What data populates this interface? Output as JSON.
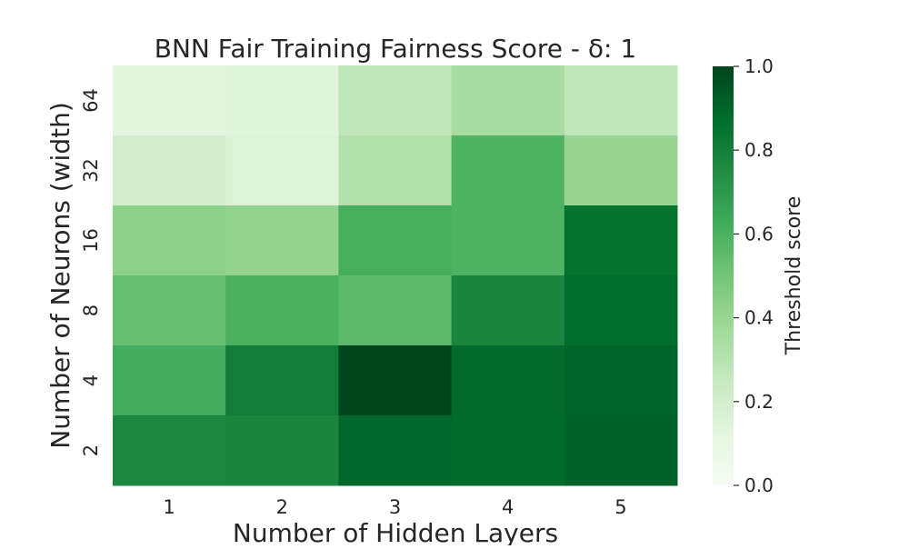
{
  "chart_data": {
    "type": "heatmap",
    "title": "BNN Fair Training Fairness Score - δ: 1",
    "xlabel": "Number of Hidden Layers",
    "ylabel": "Number of Neurons (width)",
    "x_categories": [
      "1",
      "2",
      "3",
      "4",
      "5"
    ],
    "y_categories": [
      "64",
      "32",
      "16",
      "8",
      "4",
      "2"
    ],
    "values": [
      [
        0.13,
        0.14,
        0.27,
        0.35,
        0.27
      ],
      [
        0.2,
        0.16,
        0.32,
        0.59,
        0.4
      ],
      [
        0.43,
        0.41,
        0.61,
        0.59,
        0.85
      ],
      [
        0.53,
        0.6,
        0.56,
        0.78,
        0.87
      ],
      [
        0.62,
        0.81,
        1.0,
        0.88,
        0.9
      ],
      [
        0.77,
        0.78,
        0.89,
        0.88,
        0.91
      ]
    ],
    "colorbar": {
      "label": "Threshold score",
      "range": [
        0.0,
        1.0
      ],
      "ticks": [
        "0.0",
        "0.2",
        "0.4",
        "0.6",
        "0.8",
        "1.0"
      ],
      "colormap": "Greens",
      "color_low": "#f7fcf5",
      "color_high": "#00441b"
    },
    "grid": false
  }
}
